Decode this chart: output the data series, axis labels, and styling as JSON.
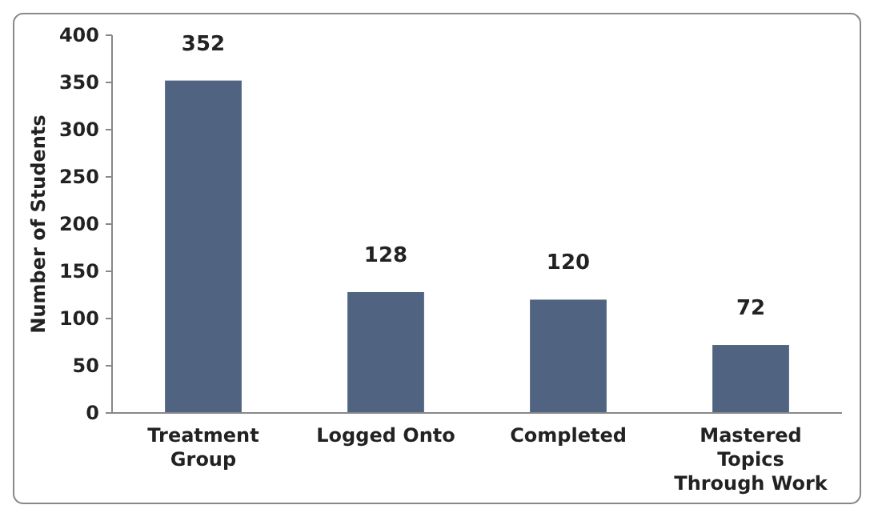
{
  "chart_data": {
    "type": "bar",
    "ylabel": "Number of Students",
    "categories": [
      "Treatment Group",
      "Logged Onto",
      "Completed",
      "Mastered Topics Through Work"
    ],
    "values": [
      352,
      128,
      120,
      72
    ],
    "color": "#506482",
    "ylim": [
      0,
      400
    ],
    "yticks": [
      0,
      50,
      100,
      150,
      200,
      250,
      300,
      350,
      400
    ],
    "data_labels": true,
    "grid": false
  }
}
